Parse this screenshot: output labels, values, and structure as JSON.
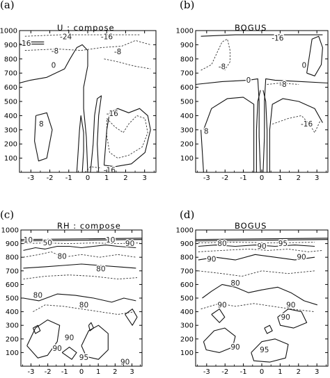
{
  "chart_data": [
    {
      "type": "contour",
      "panel_letter": "(a)",
      "title": "U : compose",
      "ylim": [
        1000,
        0
      ],
      "xlim": [
        -3.6,
        3.6
      ],
      "y_ticks": [
        "100",
        "200",
        "300",
        "400",
        "500",
        "600",
        "700",
        "800",
        "900",
        "1000"
      ],
      "x_ticks": [
        "-3",
        "-2",
        "-1",
        "0",
        "1",
        "2",
        "3"
      ],
      "contour_labels": [
        "-24",
        "-16",
        "-16",
        "-8",
        "-8",
        "0",
        "8",
        "-16",
        "-16"
      ]
    },
    {
      "type": "contour",
      "panel_letter": "(b)",
      "title": "BOGUS",
      "ylim": [
        1000,
        0
      ],
      "xlim": [
        -3.6,
        3.6
      ],
      "y_ticks": [
        "100",
        "200",
        "300",
        "400",
        "500",
        "600",
        "700",
        "800",
        "900",
        "1000"
      ],
      "x_ticks": [
        "-3",
        "-2",
        "-1",
        "0",
        "1",
        "2",
        "3"
      ],
      "contour_labels": [
        "-16",
        "-8",
        "0",
        "0",
        "-8",
        "-16",
        "8"
      ]
    },
    {
      "type": "contour",
      "panel_letter": "(c)",
      "title": "RH : compose",
      "ylim": [
        1000,
        0
      ],
      "xlim": [
        -3.6,
        3.6
      ],
      "y_ticks": [
        "100",
        "200",
        "300",
        "400",
        "500",
        "600",
        "700",
        "800",
        "900",
        "1000"
      ],
      "x_ticks": [
        "-3",
        "-2",
        "-1",
        "0",
        "1",
        "2",
        "3"
      ],
      "contour_labels": [
        "10",
        "50",
        "10",
        "90",
        "80",
        "80",
        "80",
        "80",
        "90",
        "90",
        "95",
        "90"
      ]
    },
    {
      "type": "contour",
      "panel_letter": "(d)",
      "title": "BOGUS",
      "ylim": [
        1000,
        0
      ],
      "xlim": [
        -3.6,
        3.6
      ],
      "y_ticks": [
        "100",
        "200",
        "300",
        "400",
        "500",
        "600",
        "700",
        "800",
        "900",
        "1000"
      ],
      "x_ticks": [
        "-3",
        "-2",
        "-1",
        "0",
        "1",
        "2",
        "3"
      ],
      "contour_labels": [
        "80",
        "90",
        "95",
        "90",
        "90",
        "80",
        "90",
        "90",
        "90",
        "95",
        "90"
      ]
    }
  ]
}
